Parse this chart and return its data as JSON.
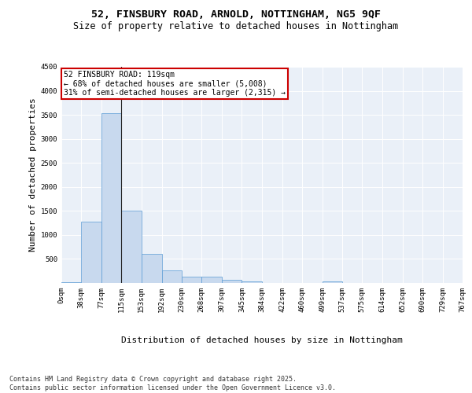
{
  "title_line1": "52, FINSBURY ROAD, ARNOLD, NOTTINGHAM, NG5 9QF",
  "title_line2": "Size of property relative to detached houses in Nottingham",
  "xlabel": "Distribution of detached houses by size in Nottingham",
  "ylabel": "Number of detached properties",
  "bar_color": "#c8d9ee",
  "bar_edge_color": "#5b9bd5",
  "background_color": "#eaf0f8",
  "grid_color": "#ffffff",
  "annotation_box_text": "52 FINSBURY ROAD: 119sqm\n← 68% of detached houses are smaller (5,008)\n31% of semi-detached houses are larger (2,315) →",
  "annotation_box_color": "#ffffff",
  "annotation_box_edge_color": "#cc0000",
  "property_line_x": 115,
  "bins": [
    0,
    38,
    77,
    115,
    153,
    192,
    230,
    268,
    307,
    345,
    384,
    422,
    460,
    499,
    537,
    575,
    614,
    652,
    690,
    729,
    767
  ],
  "bin_labels": [
    "0sqm",
    "38sqm",
    "77sqm",
    "115sqm",
    "153sqm",
    "192sqm",
    "230sqm",
    "268sqm",
    "307sqm",
    "345sqm",
    "384sqm",
    "422sqm",
    "460sqm",
    "499sqm",
    "537sqm",
    "575sqm",
    "614sqm",
    "652sqm",
    "690sqm",
    "729sqm",
    "767sqm"
  ],
  "bar_heights": [
    20,
    1280,
    3540,
    1500,
    600,
    255,
    130,
    130,
    65,
    30,
    0,
    0,
    0,
    30,
    0,
    0,
    0,
    0,
    0,
    0
  ],
  "ylim": [
    0,
    4500
  ],
  "yticks": [
    0,
    500,
    1000,
    1500,
    2000,
    2500,
    3000,
    3500,
    4000,
    4500
  ],
  "footer_text": "Contains HM Land Registry data © Crown copyright and database right 2025.\nContains public sector information licensed under the Open Government Licence v3.0.",
  "title_fontsize": 9.5,
  "subtitle_fontsize": 8.5,
  "axis_label_fontsize": 8,
  "tick_fontsize": 6.5,
  "footer_fontsize": 6,
  "annotation_fontsize": 7
}
